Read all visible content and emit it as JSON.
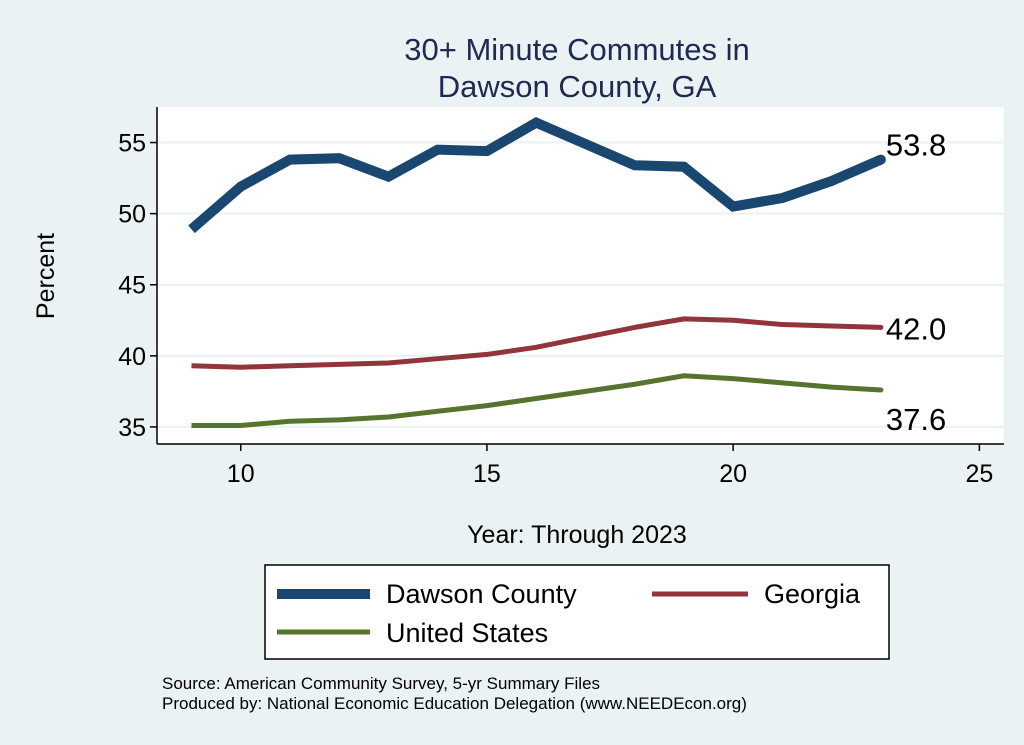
{
  "chart_data": {
    "type": "line",
    "title": [
      "30+ Minute Commutes in",
      "Dawson County, GA"
    ],
    "xlabel": "Year: Through 2023",
    "ylabel": "Percent",
    "xlim": [
      8.3,
      25.5
    ],
    "ylim": [
      33.8,
      57.5
    ],
    "xticks": [
      10,
      15,
      20,
      25
    ],
    "yticks": [
      35,
      40,
      45,
      50,
      55
    ],
    "grid": true,
    "x": [
      9,
      10,
      11,
      12,
      13,
      14,
      15,
      16,
      17,
      18,
      19,
      20,
      21,
      22,
      23
    ],
    "series": [
      {
        "name": "Dawson County",
        "color": "#1a476f",
        "width": 10,
        "end_label": "53.8",
        "values": [
          48.9,
          51.9,
          53.8,
          53.9,
          52.6,
          54.5,
          54.4,
          56.4,
          54.9,
          53.4,
          53.3,
          50.5,
          51.1,
          52.3,
          53.8
        ]
      },
      {
        "name": "Georgia",
        "color": "#90353b",
        "width": 5,
        "end_label": "42.0",
        "values": [
          39.3,
          39.2,
          39.3,
          39.4,
          39.5,
          39.8,
          40.1,
          40.6,
          41.3,
          42.0,
          42.6,
          42.5,
          42.2,
          42.1,
          42.0
        ]
      },
      {
        "name": "United States",
        "color": "#55752f",
        "width": 5,
        "end_label": "37.6",
        "values": [
          35.1,
          35.1,
          35.4,
          35.5,
          35.7,
          36.1,
          36.5,
          37.0,
          37.5,
          38.0,
          38.6,
          38.4,
          38.1,
          37.8,
          37.6
        ]
      }
    ],
    "legend_position": "bottom",
    "notes": [
      "Source: American Community Survey, 5-yr Summary Files",
      "Produced by: National Economic Education Delegation (www.NEEDEcon.org)"
    ]
  }
}
